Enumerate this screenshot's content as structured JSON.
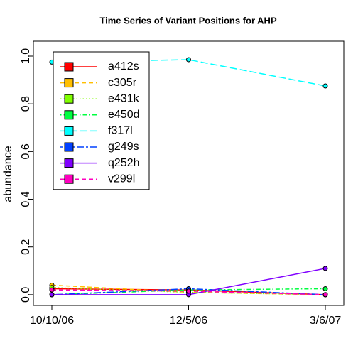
{
  "chart_data": {
    "type": "line",
    "title": "Time Series of Variant Positions for AHP",
    "y_label": "abundance",
    "categories": [
      "10/10/06",
      "12/5/06",
      "3/6/07"
    ],
    "series": [
      {
        "name": "a412s",
        "color": "#ff0000",
        "dash": "solid",
        "values": [
          0.025,
          0.02,
          0.0
        ]
      },
      {
        "name": "c305r",
        "color": "#ffbf00",
        "dash": "dashed",
        "values": [
          0.04,
          0.01,
          0.0
        ]
      },
      {
        "name": "e431k",
        "color": "#80ff00",
        "dash": "dotted",
        "values": [
          0.03,
          0.01,
          0.0
        ]
      },
      {
        "name": "e450d",
        "color": "#00ff40",
        "dash": "dotdash",
        "values": [
          0.0,
          0.02,
          0.025
        ]
      },
      {
        "name": "f317l",
        "color": "#00ffff",
        "dash": "longdash",
        "values": [
          0.975,
          0.985,
          0.875
        ]
      },
      {
        "name": "g249s",
        "color": "#0040ff",
        "dash": "twodash",
        "values": [
          0.0,
          0.025,
          0.0
        ]
      },
      {
        "name": "q252h",
        "color": "#8000ff",
        "dash": "solid",
        "values": [
          0.0,
          0.0,
          0.11
        ]
      },
      {
        "name": "v299l",
        "color": "#ff00bf",
        "dash": "dashed",
        "values": [
          0.02,
          0.015,
          0.0
        ]
      }
    ],
    "ylim": [
      -0.045,
      1.0625
    ],
    "yticks": [
      {
        "value": 0,
        "label": "0.0"
      },
      0.2,
      0.4,
      0.6,
      0.8,
      {
        "value": 1,
        "label": "1.0"
      }
    ],
    "legend": "topleft"
  }
}
